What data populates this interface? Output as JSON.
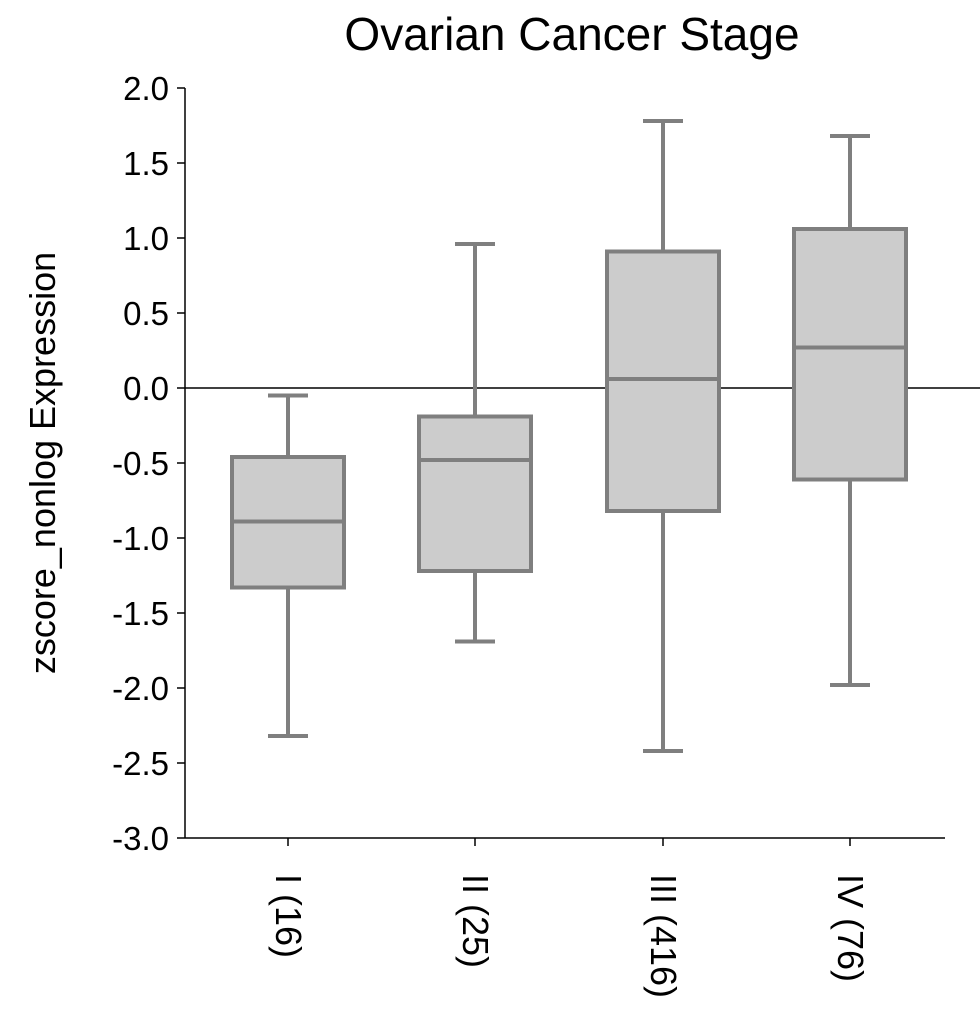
{
  "chart_data": {
    "type": "box",
    "title": "Ovarian Cancer Stage",
    "xlabel": "",
    "ylabel": "zscore_nonlog Expression",
    "ylim": [
      -3.0,
      2.0
    ],
    "yticks": [
      "2.0",
      "1.5",
      "1.0",
      "0.5",
      "0.0",
      "-0.5",
      "-1.0",
      "-1.5",
      "-2.0",
      "-2.5",
      "-3.0"
    ],
    "yticks_values": [
      2.0,
      1.5,
      1.0,
      0.5,
      0.0,
      -0.5,
      -1.0,
      -1.5,
      -2.0,
      -2.5,
      -3.0
    ],
    "reference_line": 0.0,
    "grid": false,
    "box_color": "#cccccc",
    "line_color": "#7f7f7f",
    "categories": [
      "I (16)",
      "II (25)",
      "III (416)",
      "IV (76)"
    ],
    "boxes": [
      {
        "category": "I (16)",
        "whisker_low": -2.32,
        "q1": -1.33,
        "median": -0.89,
        "q3": -0.46,
        "whisker_high": -0.05
      },
      {
        "category": "II (25)",
        "whisker_low": -1.69,
        "q1": -1.22,
        "median": -0.48,
        "q3": -0.19,
        "whisker_high": 0.96
      },
      {
        "category": "III (416)",
        "whisker_low": -2.42,
        "q1": -0.82,
        "median": 0.06,
        "q3": 0.91,
        "whisker_high": 1.78
      },
      {
        "category": "IV (76)",
        "whisker_low": -1.98,
        "q1": -0.61,
        "median": 0.27,
        "q3": 1.06,
        "whisker_high": 1.68
      }
    ]
  }
}
